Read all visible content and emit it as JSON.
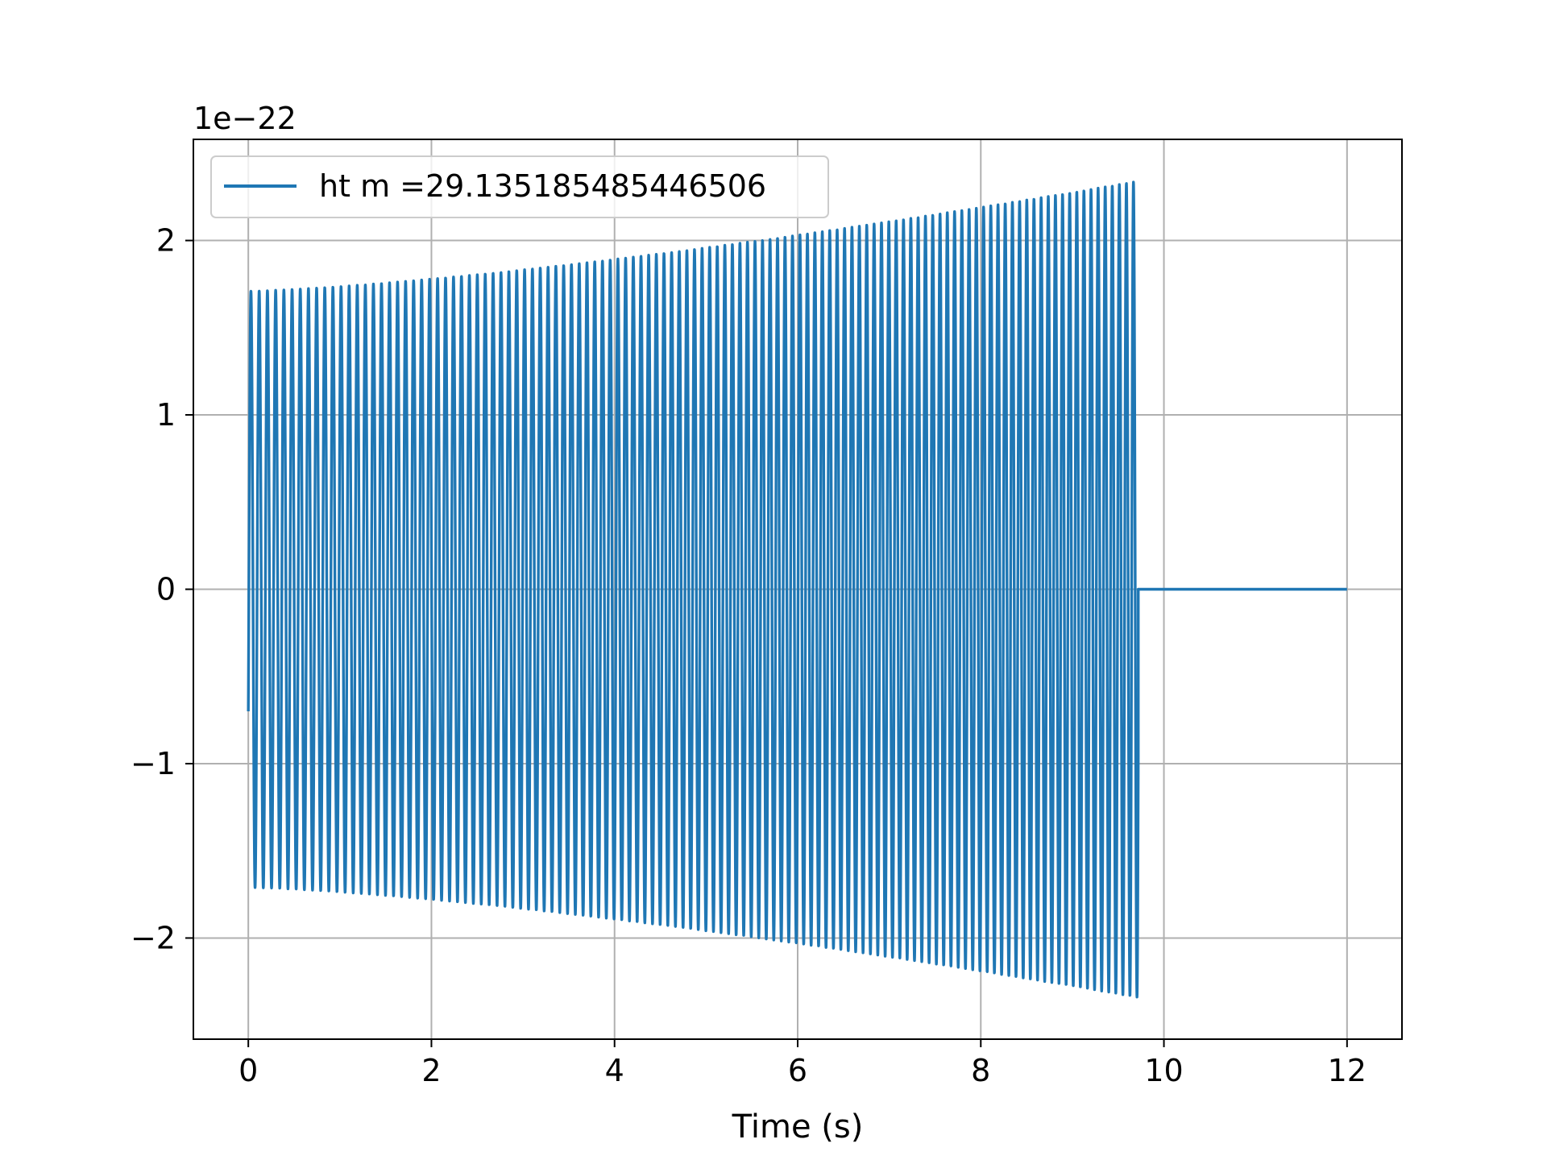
{
  "chart_data": {
    "type": "line",
    "title": "",
    "xlabel": "Time (s)",
    "ylabel": "",
    "y_offset_label": "1e−22",
    "xlim": [
      -0.6,
      12.6
    ],
    "ylim": [
      -2.58,
      2.58
    ],
    "x_ticks": [
      0,
      2,
      4,
      6,
      8,
      10,
      12
    ],
    "x_tick_labels": [
      "0",
      "2",
      "4",
      "6",
      "8",
      "10",
      "12"
    ],
    "y_ticks": [
      -2,
      -1,
      0,
      1,
      2
    ],
    "y_tick_labels": [
      "−2",
      "−1",
      "0",
      "1",
      "2"
    ],
    "grid": true,
    "legend_position": "top-left",
    "series": [
      {
        "name": "ht m =29.135185485446506",
        "color": "#1f77b4",
        "signal": {
          "start": 0,
          "merger_time": 9.72,
          "end": 12,
          "initial_amplitude": 1.71,
          "peak_amplitude": 2.34,
          "initial_value": -0.7,
          "final_value": 0,
          "cycles_before_merger": 117
        }
      }
    ]
  }
}
